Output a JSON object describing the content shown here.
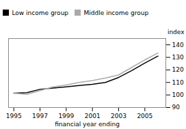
{
  "chart_data": {
    "type": "line",
    "xlabel": "financial year ending",
    "ylabel": "index",
    "x": [
      1995,
      1996,
      1997,
      1998,
      1999,
      2000,
      2001,
      2002,
      2003,
      2004,
      2005,
      2006
    ],
    "series": [
      {
        "name": "Low income group",
        "color": "#000000",
        "values": [
          101.5,
          101.8,
          104.5,
          105.5,
          106.5,
          107.5,
          108.5,
          110.0,
          114.0,
          119.5,
          125.5,
          131.0
        ]
      },
      {
        "name": "Middle income group",
        "color": "#aaaaaa",
        "values": [
          101.5,
          100.5,
          103.5,
          106.5,
          108.0,
          110.0,
          111.5,
          113.5,
          116.0,
          122.0,
          128.0,
          133.5
        ]
      }
    ],
    "xlim": [
      1994.6,
      2006.6
    ],
    "xticks": [
      1995,
      1997,
      1999,
      2001,
      2003,
      2005
    ],
    "ylim": [
      90,
      145
    ],
    "yticks": [
      90,
      100,
      110,
      120,
      130,
      140
    ],
    "grid": false,
    "legend": "upper left"
  }
}
